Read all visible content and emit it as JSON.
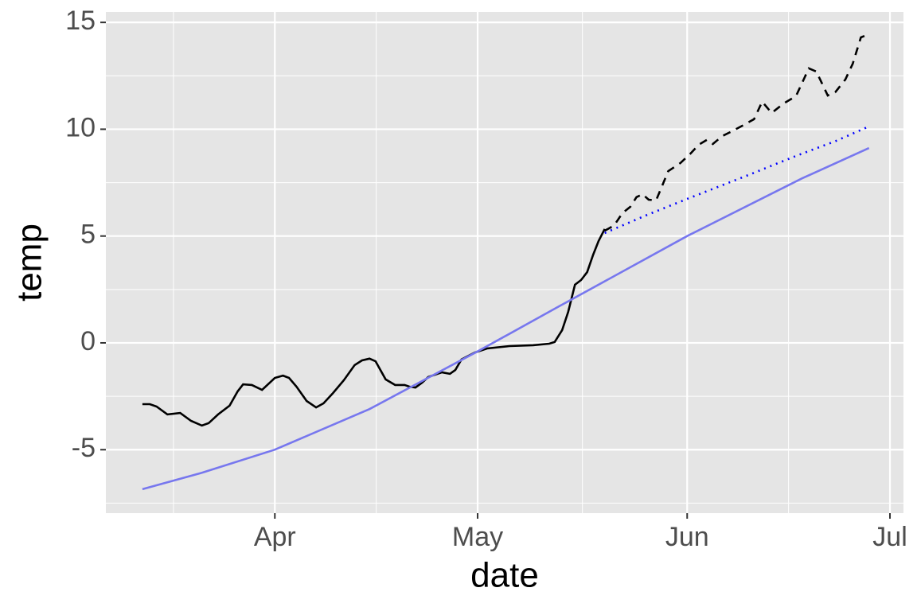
{
  "chart_data": {
    "type": "line",
    "x_label": "date",
    "y_label": "temp",
    "xlim": [
      -25,
      93
    ],
    "ylim": [
      -7.97,
      15.49
    ],
    "xticks": [
      {
        "value": 0,
        "label": "Apr"
      },
      {
        "value": 30,
        "label": "May"
      },
      {
        "value": 61,
        "label": "Jun"
      },
      {
        "value": 91,
        "label": "Jul"
      }
    ],
    "xminor": [
      -15,
      15,
      45.5,
      76
    ],
    "yticks": [
      -5,
      0,
      5,
      10,
      15
    ],
    "yminor": [
      -7.5,
      -2.5,
      2.5,
      7.5,
      12.5
    ],
    "grid": true,
    "background": "#e5e5e5",
    "series": [
      {
        "color": "#000000",
        "dash": "solid",
        "x": [
          -19.6,
          -18.5,
          -17.5,
          -15.9,
          -14,
          -12.4,
          -10.8,
          -9.8,
          -8.4,
          -6.7,
          -5.5,
          -4.7,
          -3.4,
          -1.9,
          0,
          1.2,
          2.1,
          3.2,
          4.7,
          6.1,
          7.2,
          8.6,
          10.2,
          11.8,
          12.9,
          14,
          14.9,
          16.4,
          17.8,
          19.2,
          19.9,
          20.8,
          21.8,
          22.7,
          24.7,
          25.9,
          26.7,
          27.6,
          29.6,
          31.4,
          34.7,
          38.2,
          40.6,
          41.4,
          42.5,
          43.4,
          44.4,
          45.3,
          46.2,
          47.1,
          47.9,
          48.8
        ],
        "values": [
          -2.87,
          -2.87,
          -2.98,
          -3.35,
          -3.28,
          -3.65,
          -3.87,
          -3.76,
          -3.35,
          -2.94,
          -2.27,
          -1.94,
          -1.97,
          -2.2,
          -1.64,
          -1.53,
          -1.64,
          -2.05,
          -2.72,
          -3.02,
          -2.83,
          -2.35,
          -1.75,
          -1.04,
          -0.82,
          -0.74,
          -0.86,
          -1.71,
          -1.97,
          -1.97,
          -2.05,
          -2.09,
          -1.86,
          -1.6,
          -1.38,
          -1.45,
          -1.27,
          -0.78,
          -0.45,
          -0.26,
          -0.15,
          -0.11,
          -0.04,
          0.04,
          0.6,
          1.45,
          2.72,
          2.94,
          3.31,
          4.13,
          4.77,
          5.33
        ]
      },
      {
        "color": "#000000",
        "dash": "dashed",
        "x": [
          48.8,
          50.2,
          51.4,
          52.6,
          53.5,
          54.4,
          55.3,
          56.4,
          58.2,
          60,
          61.5,
          62.7,
          63.9,
          64.8,
          66.2,
          67.6,
          69.2,
          70.9,
          72.1,
          73.5,
          75.3,
          77.1,
          79,
          80.1,
          81.8,
          82.9,
          84.4,
          85.5,
          86.7,
          87.9
        ],
        "values": [
          5.25,
          5.5,
          6.07,
          6.37,
          6.82,
          6.96,
          6.7,
          6.67,
          8.04,
          8.42,
          8.86,
          9.27,
          9.5,
          9.31,
          9.68,
          9.9,
          10.17,
          10.47,
          11.29,
          10.76,
          11.21,
          11.55,
          12.85,
          12.7,
          11.58,
          11.73,
          12.33,
          13.07,
          14.3,
          14.45
        ]
      },
      {
        "color": "#0000ff",
        "dash": "dotted",
        "x": [
          48.8,
          55,
          61,
          70,
          77.1,
          83,
          87.9
        ],
        "values": [
          5.14,
          5.98,
          6.74,
          7.85,
          8.75,
          9.45,
          10.13
        ]
      },
      {
        "color": "#7777ee",
        "dash": "solid",
        "x": [
          -19.6,
          -11,
          0,
          14,
          30,
          42,
          61,
          78,
          87.9
        ],
        "values": [
          -6.85,
          -6.1,
          -5.0,
          -3.1,
          -0.4,
          1.7,
          5.0,
          7.7,
          9.12
        ]
      }
    ]
  }
}
